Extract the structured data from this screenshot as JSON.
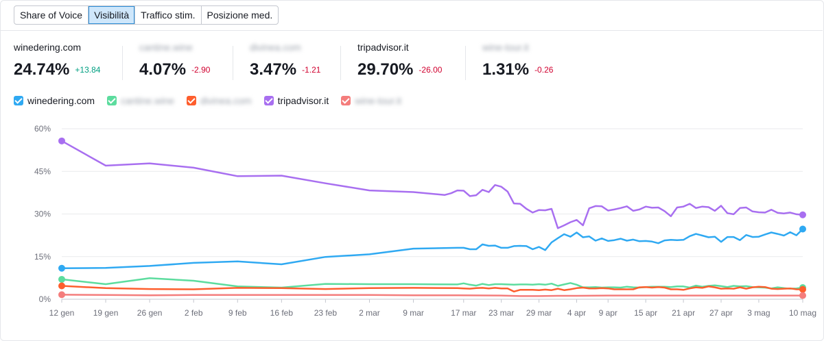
{
  "tabs": [
    {
      "label": "Share of Voice",
      "active": false
    },
    {
      "label": "Visibilità",
      "active": true
    },
    {
      "label": "Traffico stim.",
      "active": false
    },
    {
      "label": "Posizione med.",
      "active": false
    }
  ],
  "metrics": [
    {
      "domain": "winedering.com",
      "value": "24.74%",
      "delta": "+13.84",
      "blurred": false,
      "trend": "pos"
    },
    {
      "domain": "cantine.wine",
      "value": "4.07%",
      "delta": "-2.90",
      "blurred": true,
      "trend": "neg"
    },
    {
      "domain": "divinea.com",
      "value": "3.47%",
      "delta": "-1.21",
      "blurred": true,
      "trend": "neg"
    },
    {
      "domain": "tripadvisor.it",
      "value": "29.70%",
      "delta": "-26.00",
      "blurred": false,
      "trend": "neg"
    },
    {
      "domain": "wine-tour.it",
      "value": "1.31%",
      "delta": "-0.26",
      "blurred": true,
      "trend": "neg"
    }
  ],
  "legend": [
    {
      "label": "winedering.com",
      "color": "#2fa9f2",
      "blurred": false
    },
    {
      "label": "cantine.wine",
      "color": "#5cdc9e",
      "blurred": true
    },
    {
      "label": "divinea.com",
      "color": "#fe5e2d",
      "blurred": true
    },
    {
      "label": "tripadvisor.it",
      "color": "#a86ff0",
      "blurred": false
    },
    {
      "label": "wine-tour.it",
      "color": "#f47d7c",
      "blurred": true
    }
  ],
  "chart_data": {
    "type": "line",
    "y_ticks": [
      "0%",
      "15%",
      "30%",
      "45%",
      "60%"
    ],
    "y_values": [
      0,
      15,
      30,
      45,
      60
    ],
    "ylim": [
      0,
      60
    ],
    "grid": true,
    "x_ticks": [
      "12 gen",
      "19 gen",
      "26 gen",
      "2 feb",
      "9 feb",
      "16 feb",
      "23 feb",
      "2 mar",
      "9 mar",
      "17 mar",
      "23 mar",
      "29 mar",
      "4 apr",
      "9 apr",
      "15 apr",
      "21 apr",
      "27 apr",
      "3 mag",
      "10 mag"
    ],
    "x_tick_days": [
      0,
      7,
      14,
      21,
      28,
      35,
      42,
      49,
      56,
      64,
      70,
      76,
      82,
      87,
      93,
      99,
      105,
      111,
      118
    ],
    "series": [
      {
        "name": "tripadvisor.it",
        "color": "#a86ff0",
        "x": [
          0,
          7,
          14,
          21,
          28,
          35,
          42,
          49,
          56,
          61,
          62,
          63,
          64,
          65,
          66,
          67,
          68,
          69,
          70,
          71,
          72,
          73,
          74,
          75,
          76,
          77,
          78,
          79,
          80,
          81,
          82,
          83,
          84,
          85,
          86,
          87,
          88,
          89,
          90,
          91,
          92,
          93,
          94,
          95,
          96,
          97,
          98,
          99,
          100,
          101,
          102,
          103,
          104,
          105,
          106,
          107,
          108,
          109,
          110,
          111,
          112,
          113,
          114,
          115,
          116,
          117,
          118
        ],
        "y": [
          55.7,
          47,
          47.8,
          46.3,
          43.3,
          43.5,
          40.8,
          38.3,
          37.7,
          36.7,
          37.3,
          38.3,
          38.2,
          36.3,
          36.6,
          38.5,
          37.7,
          40.2,
          39.6,
          37.9,
          33.7,
          33.6,
          31.8,
          30.5,
          31.4,
          31.3,
          31.8,
          25,
          26,
          27.1,
          27.9,
          26,
          32,
          32.8,
          32.7,
          31.2,
          31.6,
          32.1,
          32.7,
          31.1,
          31.6,
          32.6,
          32.2,
          32.3,
          31,
          29.2,
          32.3,
          32.6,
          33.6,
          32.1,
          32.6,
          32.4,
          31.1,
          32.9,
          30.3,
          29.9,
          32.1,
          32.3,
          30.9,
          30.6,
          30.5,
          31.5,
          30.4,
          30.2,
          30.5,
          29.9,
          29.7
        ]
      },
      {
        "name": "winedering.com",
        "color": "#2fa9f2",
        "x": [
          0,
          7,
          14,
          21,
          28,
          35,
          42,
          49,
          56,
          63,
          64,
          65,
          66,
          67,
          68,
          69,
          70,
          71,
          72,
          73,
          74,
          75,
          76,
          77,
          78,
          79,
          80,
          81,
          82,
          83,
          84,
          85,
          86,
          87,
          88,
          89,
          90,
          91,
          92,
          93,
          94,
          95,
          96,
          97,
          98,
          99,
          100,
          101,
          102,
          103,
          104,
          105,
          106,
          107,
          108,
          109,
          110,
          111,
          112,
          113,
          114,
          115,
          116,
          117,
          118
        ],
        "y": [
          10.9,
          11,
          11.7,
          12.8,
          13.3,
          12.3,
          14.9,
          15.8,
          17.8,
          18.1,
          18.1,
          17.6,
          17.6,
          19.3,
          18.8,
          18.9,
          18.1,
          18.1,
          18.7,
          18.8,
          18.7,
          17.6,
          18.4,
          17.3,
          20,
          21.5,
          22.9,
          22,
          23.5,
          21.8,
          22.1,
          20.6,
          21.4,
          20.5,
          20.8,
          21.3,
          20.6,
          21,
          20.4,
          20.5,
          20.3,
          19.7,
          20.7,
          20.9,
          20.8,
          20.9,
          22.2,
          23,
          22.4,
          21.8,
          22,
          20.2,
          21.9,
          21.9,
          20.8,
          22.6,
          21.9,
          22,
          22.8,
          23.5,
          23,
          22.4,
          23.6,
          22.5,
          24.7
        ]
      },
      {
        "name": "cantine.wine",
        "color": "#5cdc9e",
        "x": [
          0,
          7,
          14,
          21,
          28,
          35,
          42,
          49,
          56,
          63,
          64,
          65,
          66,
          67,
          68,
          69,
          70,
          71,
          72,
          73,
          74,
          75,
          76,
          77,
          78,
          79,
          80,
          81,
          82,
          83,
          84,
          85,
          86,
          87,
          88,
          89,
          90,
          91,
          92,
          93,
          94,
          95,
          96,
          97,
          98,
          99,
          100,
          101,
          102,
          103,
          104,
          105,
          106,
          107,
          108,
          109,
          110,
          111,
          112,
          113,
          114,
          115,
          116,
          117,
          118
        ],
        "y": [
          7,
          5.3,
          7.4,
          6.5,
          4.5,
          4.1,
          5.4,
          5.3,
          5.3,
          5.2,
          5.6,
          5.1,
          4.8,
          5.4,
          5,
          5.3,
          5.3,
          5.2,
          5.1,
          5.2,
          5.2,
          5.1,
          5.3,
          5.1,
          5.5,
          4.7,
          5.2,
          5.7,
          5.1,
          4.2,
          4.2,
          4.3,
          4.1,
          4.2,
          4.2,
          4.1,
          4.4,
          4.2,
          4.1,
          4.3,
          4.4,
          4.4,
          4.4,
          4.3,
          4.5,
          4.5,
          4.1,
          4.8,
          4.4,
          4.7,
          4.9,
          4.6,
          4.3,
          4.7,
          4.5,
          4.6,
          4.3,
          4.2,
          4.1,
          3.8,
          4.2,
          3.9,
          3.7,
          3.8,
          4.1
        ]
      },
      {
        "name": "divinea.com",
        "color": "#fe5e2d",
        "x": [
          0,
          7,
          14,
          21,
          28,
          35,
          42,
          49,
          56,
          63,
          64,
          65,
          66,
          67,
          68,
          69,
          70,
          71,
          72,
          73,
          74,
          75,
          76,
          77,
          78,
          79,
          80,
          81,
          82,
          83,
          84,
          85,
          86,
          87,
          88,
          89,
          90,
          91,
          92,
          93,
          94,
          95,
          96,
          97,
          98,
          99,
          100,
          101,
          102,
          103,
          104,
          105,
          106,
          107,
          108,
          109,
          110,
          111,
          112,
          113,
          114,
          115,
          116,
          117,
          118
        ],
        "y": [
          4.7,
          3.9,
          3.6,
          3.5,
          4,
          3.9,
          3.6,
          3.9,
          4,
          3.9,
          3.8,
          3.7,
          3.9,
          4,
          3.8,
          4,
          3.8,
          3.8,
          2.7,
          3.3,
          3.3,
          3.3,
          3.2,
          3.4,
          3.2,
          3.7,
          3.2,
          3.5,
          3.9,
          4.1,
          3.8,
          3.8,
          3.9,
          3.8,
          3.5,
          3.5,
          3.5,
          3.5,
          4.2,
          4.3,
          4.1,
          4.3,
          4.1,
          3.5,
          3.5,
          3.3,
          3.8,
          4.2,
          4,
          4.5,
          4.2,
          3.7,
          3.8,
          3.7,
          4.2,
          3.7,
          4.2,
          4.4,
          4.3,
          3.7,
          3.6,
          3.7,
          3.8,
          3.5,
          3.47
        ]
      },
      {
        "name": "wine-tour.it",
        "color": "#f47d7c",
        "x": [
          0,
          7,
          14,
          21,
          28,
          35,
          42,
          49,
          56,
          63,
          70,
          73,
          76,
          79,
          82,
          87,
          93,
          99,
          105,
          111,
          118
        ],
        "y": [
          1.6,
          1.5,
          1.4,
          1.5,
          1.5,
          1.5,
          1.5,
          1.5,
          1.4,
          1.4,
          1.3,
          1.1,
          1.1,
          1.2,
          1.2,
          1.3,
          1.3,
          1.3,
          1.3,
          1.3,
          1.31
        ]
      }
    ]
  }
}
